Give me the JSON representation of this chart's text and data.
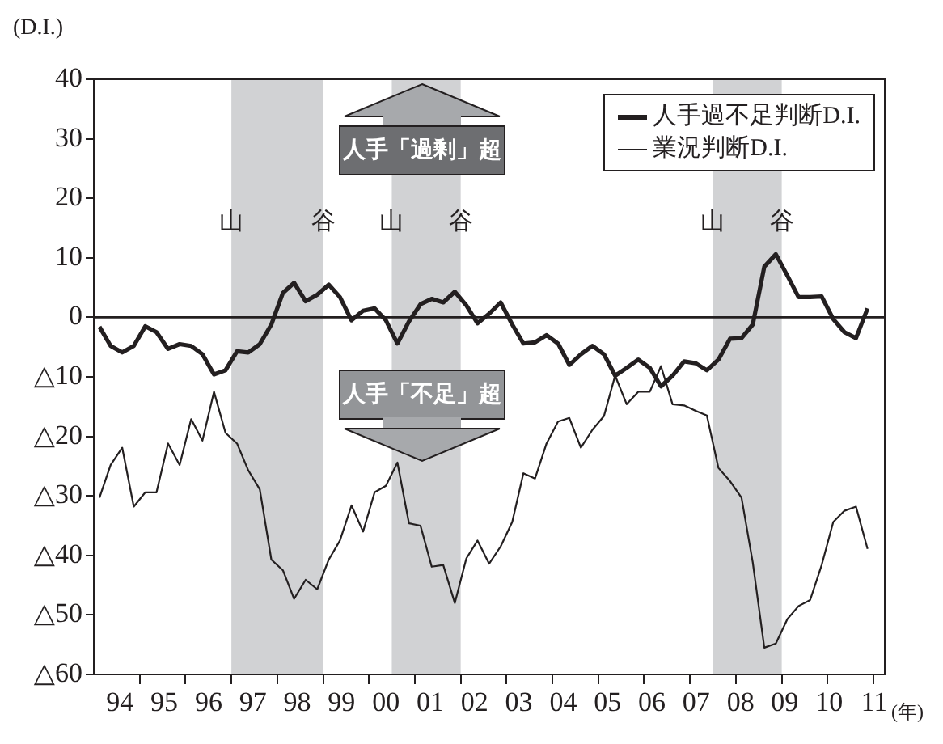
{
  "chart_data": {
    "type": "line",
    "ylabel": "(D.I.)",
    "xlabel": "(年)",
    "x": [
      "1994-02-15",
      "1994-05-15",
      "1994-08-15",
      "1994-11-15",
      "1995-02-15",
      "1995-05-15",
      "1995-08-15",
      "1995-11-15",
      "1996-02-15",
      "1996-05-15",
      "1996-08-15",
      "1996-11-15",
      "1997-02-15",
      "1997-05-15",
      "1997-08-15",
      "1997-11-15",
      "1998-02-15",
      "1998-05-15",
      "1998-08-15",
      "1998-11-15",
      "1999-02-15",
      "1999-05-15",
      "1999-08-15",
      "1999-11-15",
      "2000-02-15",
      "2000-05-15",
      "2000-08-15",
      "2000-11-15",
      "2001-02-15",
      "2001-05-15",
      "2001-08-15",
      "2001-11-15",
      "2002-02-15",
      "2002-05-15",
      "2002-08-15",
      "2002-11-15",
      "2003-02-15",
      "2003-05-15",
      "2003-08-15",
      "2003-11-15",
      "2004-02-15",
      "2004-05-15",
      "2004-08-15",
      "2004-11-15",
      "2005-02-15",
      "2005-05-15",
      "2005-08-15",
      "2005-11-15",
      "2006-02-15",
      "2006-05-15",
      "2006-08-15",
      "2006-11-15",
      "2007-02-15",
      "2007-05-15",
      "2007-08-15",
      "2007-11-15",
      "2008-02-15",
      "2008-05-15",
      "2008-08-15",
      "2008-11-15",
      "2009-02-15",
      "2009-05-15",
      "2009-08-15",
      "2009-11-15",
      "2010-02-15",
      "2010-05-15",
      "2010-08-15",
      "2010-11-15"
    ],
    "series": [
      {
        "name": "人手過不足判断D.I.",
        "color": "#231f20",
        "values": [
          -1.6,
          -4.8,
          -5.9,
          -4.8,
          -1.5,
          -2.5,
          -5.3,
          -4.5,
          -4.8,
          -6.2,
          -9.6,
          -8.9,
          -5.7,
          -5.9,
          -4.5,
          -1.2,
          4.1,
          5.8,
          2.7,
          3.8,
          5.5,
          3.4,
          -0.5,
          1.1,
          1.5,
          -0.5,
          -4.4,
          -0.7,
          2.2,
          3.1,
          2.5,
          4.3,
          2,
          -1,
          0.6,
          2.5,
          -1.2,
          -4.4,
          -4.2,
          -3,
          -4.4,
          -8,
          -6.2,
          -4.8,
          -6.2,
          -9.8,
          -8.5,
          -7.1,
          -8.5,
          -11.6,
          -9.8,
          -7.4,
          -7.7,
          -8.9,
          -7.1,
          -3.6,
          -3.5,
          -1.2,
          8.5,
          10.6,
          7,
          3.4,
          3.4,
          3.5,
          -0.3,
          -2.5,
          -3.5,
          1.5
        ]
      },
      {
        "name": "業況判断D.I.",
        "color": "#231f20",
        "values": [
          -30.3,
          -24.8,
          -21.9,
          -31.8,
          -29.4,
          -29.4,
          -21.2,
          -24.8,
          -17.1,
          -20.7,
          -12.5,
          -19.4,
          -21.2,
          -25.7,
          -28.9,
          -40.7,
          -42.5,
          -47.3,
          -44.1,
          -45.7,
          -40.7,
          -37.5,
          -31.6,
          -36,
          -29.4,
          -28.3,
          -24.4,
          -34.6,
          -35,
          -41.9,
          -41.6,
          -48,
          -40.5,
          -37.5,
          -41.4,
          -38.5,
          -34.4,
          -26.2,
          -27.1,
          -21.2,
          -17.5,
          -16.9,
          -21.9,
          -18.9,
          -16.6,
          -9.8,
          -14.6,
          -12.5,
          -12.5,
          -8.2,
          -14.6,
          -14.8,
          -15.7,
          -16.5,
          -25.3,
          -27.5,
          -30.3,
          -41.2,
          -55.5,
          -54.8,
          -50.7,
          -48.5,
          -47.5,
          -41.6,
          -34.4,
          -32.5,
          -31.8,
          -38.9
        ]
      }
    ],
    "xlim": [
      "1994-01-01",
      "2011-04-01"
    ],
    "xticks": [
      {
        "value": "1994-07-27",
        "label": "94"
      },
      {
        "value": "1995-07-15",
        "label": "95"
      },
      {
        "value": "1996-07-03",
        "label": "96"
      },
      {
        "value": "1997-06-21",
        "label": "97"
      },
      {
        "value": "1998-06-09",
        "label": "98"
      },
      {
        "value": "1999-05-28",
        "label": "99"
      },
      {
        "value": "2000-05-16",
        "label": "00"
      },
      {
        "value": "2001-05-04",
        "label": "01"
      },
      {
        "value": "2002-04-21",
        "label": "02"
      },
      {
        "value": "2003-04-09",
        "label": "03"
      },
      {
        "value": "2004-03-28",
        "label": "04"
      },
      {
        "value": "2005-03-16",
        "label": "05"
      },
      {
        "value": "2006-03-03",
        "label": "06"
      },
      {
        "value": "2007-02-19",
        "label": "07"
      },
      {
        "value": "2008-02-07",
        "label": "08"
      },
      {
        "value": "2009-01-25",
        "label": "09"
      },
      {
        "value": "2010-01-13",
        "label": "10"
      },
      {
        "value": "2011-01-08",
        "label": "11"
      },
      {
        "value": "1995-01-01",
        "label": null
      },
      {
        "value": "1996-01-01",
        "label": null
      },
      {
        "value": "1997-01-01",
        "label": null
      },
      {
        "value": "1998-01-01",
        "label": null
      },
      {
        "value": "1999-01-01",
        "label": null
      },
      {
        "value": "2000-01-01",
        "label": null
      },
      {
        "value": "2001-01-01",
        "label": null
      },
      {
        "value": "2002-01-01",
        "label": null
      },
      {
        "value": "2003-01-01",
        "label": null
      },
      {
        "value": "2004-01-01",
        "label": null
      },
      {
        "value": "2005-01-01",
        "label": null
      },
      {
        "value": "2006-01-01",
        "label": null
      },
      {
        "value": "2007-01-01",
        "label": null
      },
      {
        "value": "2008-01-01",
        "label": null
      },
      {
        "value": "2009-01-01",
        "label": null
      },
      {
        "value": "2010-01-01",
        "label": null
      },
      {
        "value": "2011-01-01",
        "label": null
      }
    ],
    "ylim": [
      -60,
      40
    ],
    "yticks": [
      40,
      30,
      20,
      10,
      0,
      {
        "value": -10,
        "label": "△10"
      },
      {
        "value": -20,
        "label": "△20"
      },
      {
        "value": -30,
        "label": "△30"
      },
      {
        "value": -40,
        "label": "△40"
      },
      {
        "value": -50,
        "label": "△50"
      },
      {
        "value": -60,
        "label": "△60"
      }
    ],
    "bands": [
      {
        "axis": "x",
        "from": "1997-01-01",
        "to": "1999-01-01",
        "color": "#d1d2d4"
      },
      {
        "axis": "x",
        "from": "2000-07-01",
        "to": "2002-01-01",
        "color": "#d1d2d4"
      },
      {
        "axis": "x",
        "from": "2007-07-01",
        "to": "2009-01-01",
        "color": "#d1d2d4"
      }
    ],
    "ref_lines": [
      {
        "axis": "y",
        "value": 0,
        "color": "#231f20"
      }
    ],
    "annotations": [
      "人手「過剰」超",
      "人手「不足」超",
      {
        "text": "山",
        "x": "1997-01-01",
        "y": 16
      },
      {
        "text": "谷",
        "x": "1999-01-01",
        "y": 16
      },
      {
        "text": "山",
        "x": "2000-07-01",
        "y": 16
      },
      {
        "text": "谷",
        "x": "2002-01-01",
        "y": 16
      },
      {
        "text": "山",
        "x": "2007-07-01",
        "y": 16
      },
      {
        "text": "谷",
        "x": "2009-01-01",
        "y": 16
      }
    ],
    "legend": "top right",
    "grid": false,
    "marker": "none",
    "line_style": "solid"
  }
}
